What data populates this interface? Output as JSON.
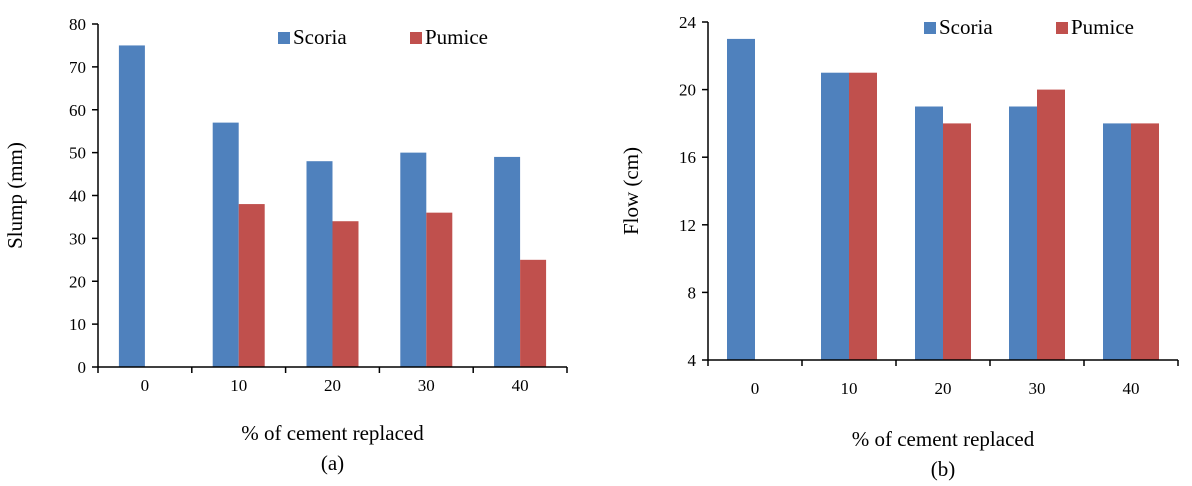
{
  "chart_data": [
    {
      "type": "bar",
      "panel_label": "(a)",
      "categories": [
        "0",
        "10",
        "20",
        "30",
        "40"
      ],
      "series": [
        {
          "name": "Scoria",
          "values": [
            75,
            57,
            48,
            50,
            49
          ],
          "color": "#4f81bd"
        },
        {
          "name": "Pumice",
          "values": [
            null,
            38,
            34,
            36,
            25
          ],
          "color": "#c0504d"
        }
      ],
      "xlabel": "% of cement replaced",
      "ylabel": "Slump (mm)",
      "ylim": [
        0,
        80
      ],
      "yticks": [
        0,
        10,
        20,
        30,
        40,
        50,
        60,
        70,
        80
      ],
      "legend": "top-right",
      "grid": false
    },
    {
      "type": "bar",
      "panel_label": "(b)",
      "categories": [
        "0",
        "10",
        "20",
        "30",
        "40"
      ],
      "series": [
        {
          "name": "Scoria",
          "values": [
            23,
            21,
            19,
            19,
            18
          ],
          "color": "#4f81bd"
        },
        {
          "name": "Pumice",
          "values": [
            null,
            21,
            18,
            20,
            18
          ],
          "color": "#c0504d"
        }
      ],
      "xlabel": "% of cement replaced",
      "ylabel": "Flow (cm)",
      "ylim": [
        4,
        24
      ],
      "yticks": [
        4,
        8,
        12,
        16,
        20,
        24
      ],
      "legend": "top-right",
      "grid": false
    }
  ]
}
